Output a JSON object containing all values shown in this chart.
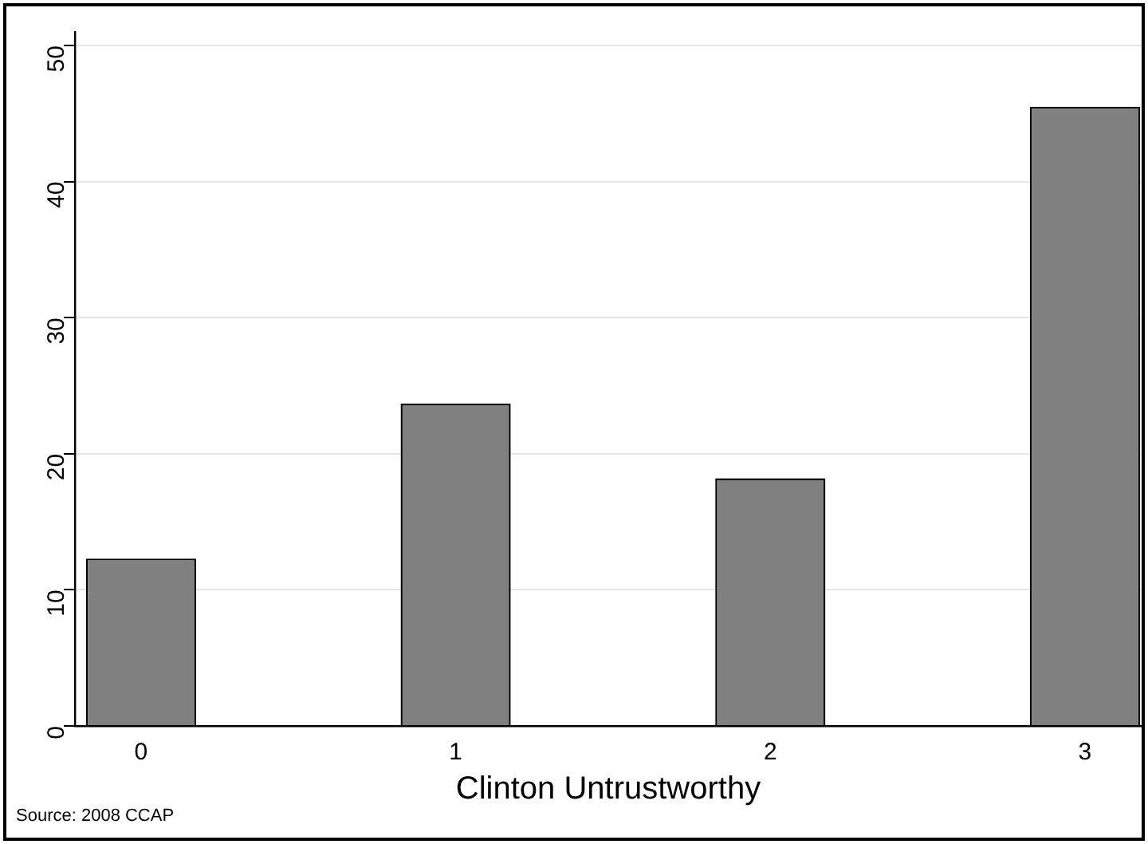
{
  "chart_data": {
    "type": "bar",
    "xlabel": "Clinton Untrustworthy",
    "x": [
      0,
      1,
      2,
      3
    ],
    "values": [
      12.3,
      23.7,
      18.2,
      45.5
    ],
    "color": "#808080",
    "xlim": [
      -0.21,
      3.18
    ],
    "xticks": [
      0,
      1,
      2,
      3
    ],
    "ylim": [
      0,
      51
    ],
    "yticks": [
      0,
      10,
      20,
      30,
      40,
      50
    ],
    "grid": "y",
    "legend": false,
    "annotations": [
      "Source: 2008 CCAP"
    ]
  }
}
